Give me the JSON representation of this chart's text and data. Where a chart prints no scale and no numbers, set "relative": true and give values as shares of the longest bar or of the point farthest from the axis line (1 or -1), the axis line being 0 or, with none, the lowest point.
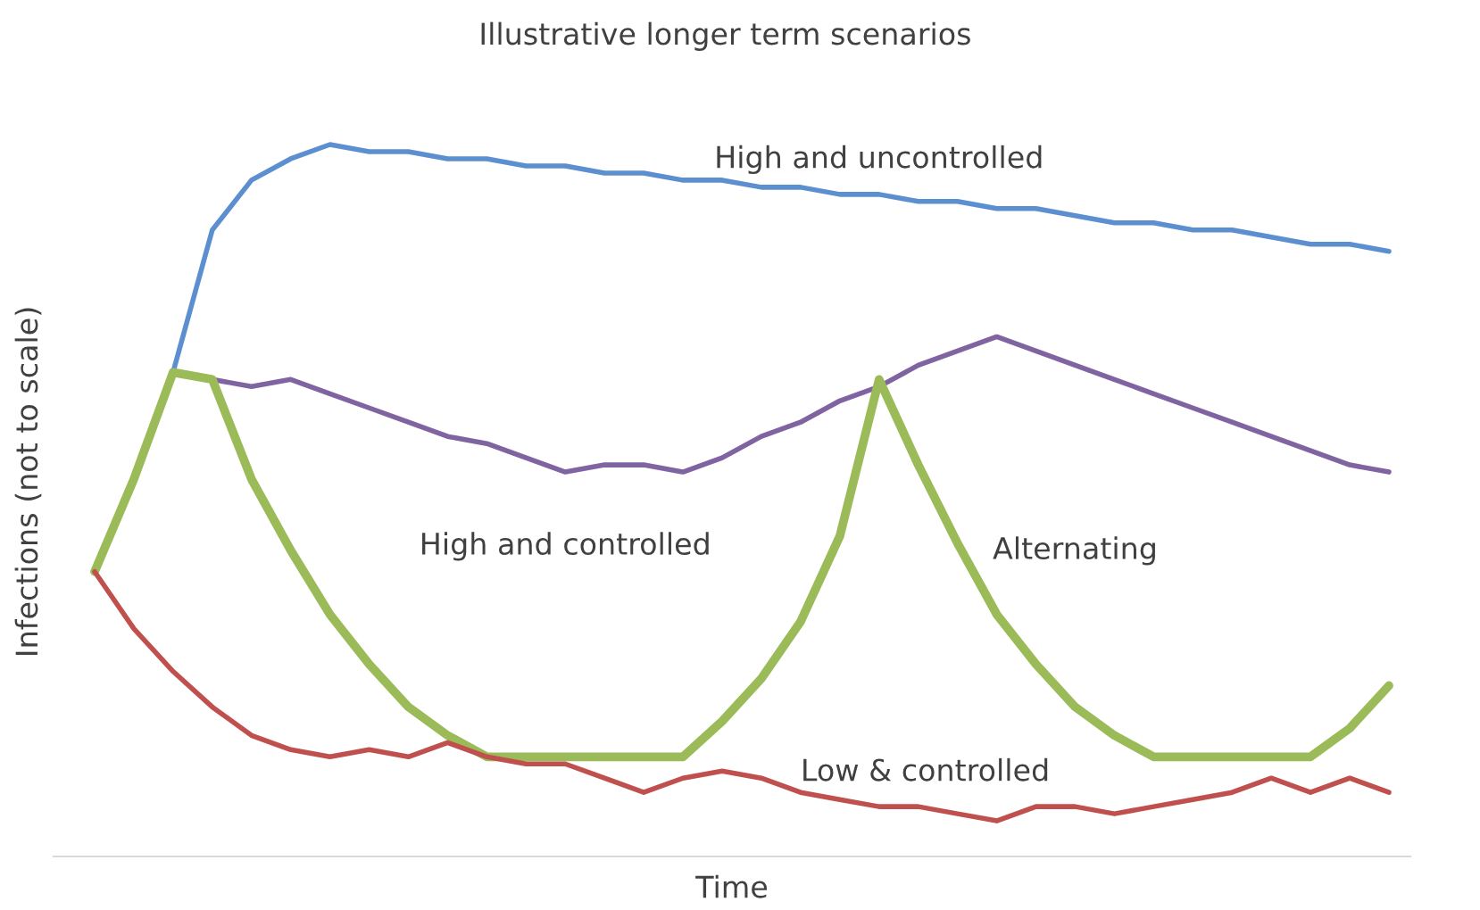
{
  "chart_data": {
    "type": "line",
    "title": "Illustrative longer term scenarios",
    "xlabel": "Time",
    "ylabel": "Infections (not to scale)",
    "relative": true,
    "grid": false,
    "legend": false,
    "marker": "none",
    "line_style": "solid",
    "categories": [
      null,
      null,
      null,
      null,
      null,
      null,
      null,
      null,
      null,
      null,
      null,
      null,
      null,
      null,
      null,
      null,
      null,
      null,
      null,
      null,
      null,
      null,
      null,
      null,
      null,
      null,
      null,
      null,
      null,
      null,
      null,
      null,
      null,
      null
    ],
    "series": [
      {
        "name": "High and uncontrolled",
        "color": "#5b8fd0",
        "values": [
          null,
          null,
          0.68,
          0.88,
          0.95,
          0.98,
          1.0,
          0.99,
          0.99,
          0.98,
          0.98,
          0.97,
          0.97,
          0.96,
          0.96,
          0.95,
          0.95,
          0.94,
          0.94,
          0.93,
          0.93,
          0.92,
          0.92,
          0.91,
          0.91,
          0.9,
          0.89,
          0.89,
          0.88,
          0.88,
          0.87,
          0.86,
          0.86,
          0.85
        ]
      },
      {
        "name": "High and controlled",
        "color": "#8064a2",
        "values": [
          null,
          null,
          0.68,
          0.67,
          0.66,
          0.67,
          0.65,
          0.63,
          0.61,
          0.59,
          0.58,
          0.56,
          0.54,
          0.55,
          0.55,
          0.54,
          0.56,
          0.59,
          0.61,
          0.64,
          0.66,
          0.69,
          0.71,
          0.73,
          0.71,
          0.69,
          0.67,
          0.65,
          0.63,
          0.61,
          0.59,
          0.57,
          0.55,
          0.54
        ]
      },
      {
        "name": "Alternating",
        "color": "#9bbb59",
        "values": [
          0.4,
          0.53,
          0.68,
          0.67,
          0.53,
          0.43,
          0.34,
          0.27,
          0.21,
          0.17,
          0.14,
          0.14,
          0.14,
          0.14,
          0.14,
          0.14,
          0.19,
          0.25,
          0.33,
          0.45,
          0.67,
          0.55,
          0.44,
          0.34,
          0.27,
          0.21,
          0.17,
          0.14,
          0.14,
          0.14,
          0.14,
          0.14,
          0.18,
          0.24
        ]
      },
      {
        "name": "Low & controlled",
        "color": "#c0504d",
        "values": [
          0.4,
          0.32,
          0.26,
          0.21,
          0.17,
          0.15,
          0.14,
          0.15,
          0.14,
          0.16,
          0.14,
          0.13,
          0.13,
          0.11,
          0.09,
          0.11,
          0.12,
          0.11,
          0.09,
          0.08,
          0.07,
          0.07,
          0.06,
          0.05,
          0.07,
          0.07,
          0.06,
          0.07,
          0.08,
          0.09,
          0.11,
          0.09,
          0.11,
          0.09
        ]
      }
    ]
  }
}
